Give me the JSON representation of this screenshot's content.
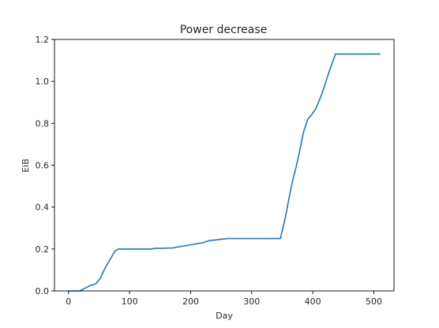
{
  "chart_data": {
    "type": "line",
    "title": "Power decrease",
    "xlabel": "Day",
    "ylabel": "EiB",
    "xlim": [
      -23,
      533
    ],
    "ylim": [
      0,
      1.2
    ],
    "x_ticks": [
      0,
      100,
      200,
      300,
      400,
      500
    ],
    "y_ticks": [
      0.0,
      0.2,
      0.4,
      0.6,
      0.8,
      1.0,
      1.2
    ],
    "x_tick_labels": [
      "0",
      "100",
      "200",
      "300",
      "400",
      "500"
    ],
    "y_tick_labels": [
      "0.0",
      "0.2",
      "0.4",
      "0.6",
      "0.8",
      "1.0",
      "1.2"
    ],
    "grid": false,
    "colors": {
      "line": "#1f77b4",
      "axis": "#000000"
    },
    "series": [
      {
        "x": [
          0,
          18,
          25,
          35,
          45,
          52,
          60,
          68,
          76,
          82,
          90,
          100,
          120,
          137,
          140,
          170,
          200,
          220,
          230,
          240,
          260,
          300,
          340,
          347,
          355,
          365,
          375,
          385,
          392,
          398,
          405,
          415,
          425,
          437,
          450,
          480,
          510
        ],
        "y": [
          0.0,
          0.0,
          0.01,
          0.025,
          0.035,
          0.06,
          0.11,
          0.15,
          0.19,
          0.2,
          0.2,
          0.2,
          0.2,
          0.2,
          0.203,
          0.205,
          0.22,
          0.23,
          0.24,
          0.243,
          0.25,
          0.25,
          0.25,
          0.25,
          0.35,
          0.5,
          0.62,
          0.76,
          0.82,
          0.84,
          0.87,
          0.94,
          1.03,
          1.13,
          1.13,
          1.13,
          1.13
        ]
      }
    ]
  }
}
